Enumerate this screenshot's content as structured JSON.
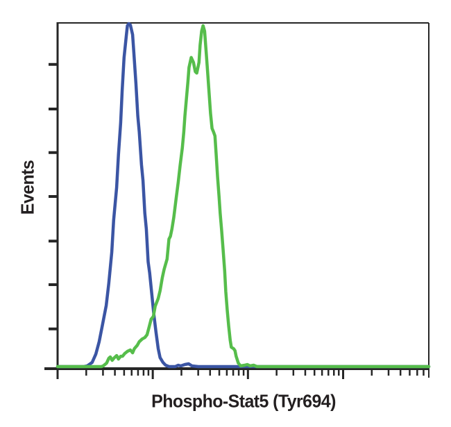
{
  "figure": {
    "background": "#ffffff",
    "axis_color": "#262626",
    "text_color": "#231f20"
  },
  "labels": {
    "y_axis": "Events",
    "x_axis": "Phospho-Stat5 (Tyr694)"
  },
  "axes": {
    "x_scale": "log",
    "x_decades_span": 3.9,
    "x_tick_labels_shown": false,
    "y_tick_labels_shown": false,
    "x_major_ticks": [
      0.0,
      0.2564,
      0.5128,
      0.7692
    ],
    "x_minor_ticks": [
      0.0772,
      0.1223,
      0.1544,
      0.1792,
      0.1995,
      0.2167,
      0.2316,
      0.2447,
      0.3336,
      0.3788,
      0.4108,
      0.4356,
      0.4559,
      0.4731,
      0.488,
      0.5011,
      0.59,
      0.6352,
      0.6672,
      0.692,
      0.7124,
      0.7295,
      0.7444,
      0.7575,
      0.8464,
      0.8916,
      0.9237,
      0.9485,
      0.9688,
      0.9859
    ],
    "y_ticks": [
      0.12,
      0.249,
      0.375,
      0.502,
      0.631,
      0.757,
      0.885
    ]
  },
  "chart_data": {
    "type": "line",
    "subtype": "flow-cytometry-histogram-overlay",
    "title": "",
    "xlabel": "Phospho-Stat5 (Tyr694)",
    "ylabel": "Events",
    "x_axis": {
      "scale": "log",
      "decades": 3.9,
      "tick_labels": "none"
    },
    "y_axis": {
      "scale": "linear",
      "tick_count": 7,
      "tick_labels": "none"
    },
    "legend": "none",
    "point_units": "percent of plot box, y measured from top (0=top border, 100=baseline)",
    "series": [
      {
        "name": "blue-histogram",
        "color": "#3b55a4",
        "stroke_width": 4.5,
        "peak": {
          "x_pct": 19.2,
          "y_pct": 0.2
        },
        "points": [
          [
            0,
            99.4
          ],
          [
            7.1,
            99.4
          ],
          [
            8,
            99.2
          ],
          [
            9.3,
            98.2
          ],
          [
            10.3,
            95.8
          ],
          [
            11.2,
            92.2
          ],
          [
            12.1,
            87.3
          ],
          [
            13.1,
            81.7
          ],
          [
            13.8,
            75.3
          ],
          [
            14.6,
            66.3
          ],
          [
            15.1,
            57
          ],
          [
            15.9,
            47.6
          ],
          [
            16.4,
            38.2
          ],
          [
            17,
            28.9
          ],
          [
            17.4,
            19.5
          ],
          [
            17.9,
            10
          ],
          [
            18.5,
            3.8
          ],
          [
            18.8,
            0.8
          ],
          [
            19.2,
            0.2
          ],
          [
            19.6,
            0.6
          ],
          [
            20.2,
            3.4
          ],
          [
            20.5,
            8
          ],
          [
            21.1,
            17.5
          ],
          [
            21.6,
            26.9
          ],
          [
            22,
            31.5
          ],
          [
            22.6,
            41
          ],
          [
            23,
            45.6
          ],
          [
            23.5,
            55
          ],
          [
            23.9,
            59.6
          ],
          [
            24.4,
            69.1
          ],
          [
            24.8,
            72.3
          ],
          [
            25.4,
            78.7
          ],
          [
            25.9,
            84.1
          ],
          [
            26.5,
            89.4
          ],
          [
            27.1,
            94.2
          ],
          [
            27.6,
            96.8
          ],
          [
            28.4,
            98.2
          ],
          [
            29.1,
            99
          ],
          [
            30,
            99.4
          ],
          [
            31.7,
            99.4
          ],
          [
            32.5,
            99
          ],
          [
            33.2,
            99.2
          ],
          [
            34.3,
            98.8
          ],
          [
            35.3,
            98.6
          ],
          [
            36.2,
            99.2
          ],
          [
            37.9,
            99.4
          ],
          [
            100,
            99.4
          ]
        ]
      },
      {
        "name": "green-histogram",
        "color": "#56bd4b",
        "stroke_width": 4.5,
        "peak": {
          "x_pct": 39.2,
          "y_pct": 0.8
        },
        "points": [
          [
            0,
            99.4
          ],
          [
            11.8,
            99.4
          ],
          [
            12.3,
            99.2
          ],
          [
            13.2,
            98.4
          ],
          [
            13.8,
            97
          ],
          [
            14.2,
            96.6
          ],
          [
            14.7,
            97.6
          ],
          [
            15.3,
            96.8
          ],
          [
            15.9,
            96.2
          ],
          [
            16.4,
            97.2
          ],
          [
            17,
            96.4
          ],
          [
            17.5,
            96.4
          ],
          [
            18.1,
            95.6
          ],
          [
            18.8,
            95
          ],
          [
            19.6,
            94.6
          ],
          [
            20.2,
            95.4
          ],
          [
            20.7,
            94.2
          ],
          [
            21.5,
            93.2
          ],
          [
            22,
            92.2
          ],
          [
            22.8,
            91.4
          ],
          [
            23.5,
            91
          ],
          [
            24.1,
            90.2
          ],
          [
            24.6,
            88.2
          ],
          [
            25.2,
            85.7
          ],
          [
            25.8,
            84.9
          ],
          [
            26.3,
            81.9
          ],
          [
            27.1,
            79.7
          ],
          [
            27.6,
            77.5
          ],
          [
            28.2,
            73.7
          ],
          [
            28.7,
            71.3
          ],
          [
            29.5,
            68.3
          ],
          [
            30,
            62.5
          ],
          [
            30.4,
            61.7
          ],
          [
            30.8,
            59.6
          ],
          [
            31.3,
            56.2
          ],
          [
            31.9,
            51
          ],
          [
            32.5,
            46
          ],
          [
            33,
            41.2
          ],
          [
            33.6,
            36.1
          ],
          [
            34,
            31.5
          ],
          [
            34.3,
            26.9
          ],
          [
            34.7,
            22.1
          ],
          [
            35.1,
            17.1
          ],
          [
            35.4,
            12.9
          ],
          [
            36,
            10
          ],
          [
            36.6,
            11.4
          ],
          [
            37.1,
            14.1
          ],
          [
            37.5,
            14.5
          ],
          [
            38.1,
            11.4
          ],
          [
            38.4,
            6.4
          ],
          [
            38.8,
            2.4
          ],
          [
            39.2,
            0.8
          ],
          [
            39.6,
            2.4
          ],
          [
            40.1,
            9.4
          ],
          [
            40.5,
            15.5
          ],
          [
            40.9,
            21.5
          ],
          [
            41.2,
            26.1
          ],
          [
            41.6,
            30.5
          ],
          [
            42,
            31.5
          ],
          [
            42.4,
            32.7
          ],
          [
            42.7,
            37.6
          ],
          [
            43.1,
            44.6
          ],
          [
            43.5,
            50.2
          ],
          [
            43.8,
            55
          ],
          [
            44.2,
            60.2
          ],
          [
            44.6,
            65.7
          ],
          [
            45,
            71.7
          ],
          [
            45.3,
            77.7
          ],
          [
            45.7,
            83.1
          ],
          [
            46.1,
            87.7
          ],
          [
            46.5,
            91.8
          ],
          [
            46.8,
            93.8
          ],
          [
            47.4,
            94.2
          ],
          [
            47.8,
            94.8
          ],
          [
            48.1,
            96.4
          ],
          [
            48.7,
            98.4
          ],
          [
            49.3,
            99.2
          ],
          [
            50.4,
            99
          ],
          [
            51.1,
            98.8
          ],
          [
            51.9,
            99.2
          ],
          [
            52.8,
            99
          ],
          [
            53.7,
            99.4
          ],
          [
            100,
            99.4
          ]
        ]
      }
    ]
  }
}
